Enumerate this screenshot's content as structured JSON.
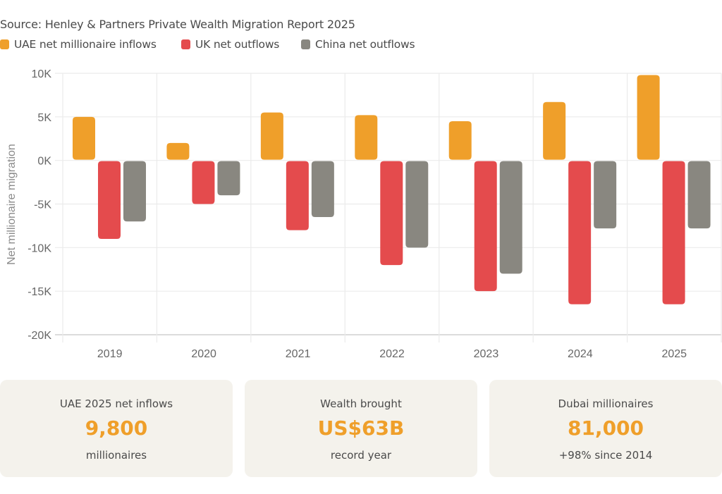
{
  "source": "Source: Henley & Partners Private Wealth Migration Report 2025",
  "legend": [
    {
      "label": "UAE net millionaire inflows",
      "color": "#EF9F2A"
    },
    {
      "label": "UK net outflows",
      "color": "#E44B4D"
    },
    {
      "label": "China net outflows",
      "color": "#898780"
    }
  ],
  "chart_data": {
    "type": "bar",
    "title": "",
    "xlabel": "",
    "ylabel": "Net millionaire migration",
    "ylim": [
      -20000,
      10000
    ],
    "yticks": [
      10000,
      5000,
      0,
      -5000,
      -10000,
      -15000,
      -20000
    ],
    "ytick_labels": [
      "10K",
      "5K",
      "0K",
      "-5K",
      "-10K",
      "-15K",
      "-20K"
    ],
    "grid": true,
    "legend_position": "top-left",
    "categories": [
      "2019",
      "2020",
      "2021",
      "2022",
      "2023",
      "2024",
      "2025"
    ],
    "series": [
      {
        "name": "UAE net millionaire inflows",
        "color": "#EF9F2A",
        "values": [
          5000,
          2000,
          5500,
          5200,
          4500,
          6700,
          9800
        ]
      },
      {
        "name": "UK net outflows",
        "color": "#E44B4D",
        "values": [
          -9000,
          -5000,
          -8000,
          -12000,
          -15000,
          -16500,
          -16500
        ]
      },
      {
        "name": "China net outflows",
        "color": "#898780",
        "values": [
          -7000,
          -4000,
          -6500,
          -10000,
          -13000,
          -7800,
          -7800
        ]
      }
    ]
  },
  "cards": [
    {
      "label": "UAE 2025 net inflows",
      "value": "9,800",
      "sub": "millionaires"
    },
    {
      "label": "Wealth brought",
      "value": "US$63B",
      "sub": "record year"
    },
    {
      "label": "Dubai millionaires",
      "value": "81,000",
      "sub": "+98% since 2014"
    }
  ]
}
